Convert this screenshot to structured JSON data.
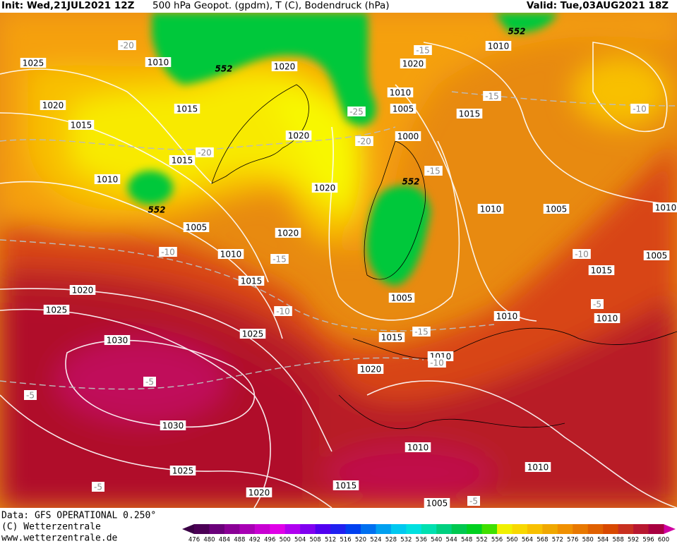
{
  "header": {
    "init": "Init: Wed,21JUL2021 12Z",
    "product": "500 hPa Geopot. (gpdm), T (C), Bodendruck (hPa)",
    "valid": "Valid: Tue,03AUG2021 18Z"
  },
  "footer": {
    "source": "Data: GFS OPERATIONAL 0.250°",
    "copyright": "(C) Wetterzentrale",
    "url": "www.wetterzentrale.de"
  },
  "pressure_labels": [
    "1025",
    "1010",
    "1020",
    "1015",
    "1015",
    "1015",
    "1010",
    "1020",
    "1020",
    "1010",
    "1010",
    "1005",
    "1015",
    "1000",
    "1020",
    "1020",
    "1005",
    "1020",
    "1010",
    "1010",
    "1005",
    "1010",
    "1005",
    "1015",
    "1015",
    "1020",
    "1025",
    "1005",
    "1010",
    "1010",
    "1025",
    "1015",
    "1010",
    "1030",
    "1020",
    "1030",
    "1010",
    "1010",
    "1025",
    "1015",
    "1020",
    "1005"
  ],
  "temperature_labels": [
    "-20",
    "-15",
    "-15",
    "-10",
    "-25",
    "-20",
    "-20",
    "-15",
    "-10",
    "-15",
    "-10",
    "-10",
    "-5",
    "-15",
    "-10",
    "-5",
    "-5",
    "-5",
    "-5"
  ],
  "geopotential_labels": [
    "552",
    "552",
    "552",
    "552"
  ],
  "colorbar": {
    "levels": [
      476,
      480,
      484,
      488,
      492,
      496,
      500,
      504,
      508,
      512,
      516,
      520,
      524,
      528,
      532,
      536,
      540,
      544,
      548,
      552,
      556,
      560,
      564,
      568,
      572,
      576,
      580,
      584,
      588,
      592,
      596,
      600
    ],
    "colors": [
      "#4b0055",
      "#6a007a",
      "#8a0096",
      "#a800b4",
      "#c800d2",
      "#e000e8",
      "#b000f0",
      "#8000f0",
      "#5000f0",
      "#2020f0",
      "#0040f0",
      "#0070f0",
      "#00a0f0",
      "#00c8f0",
      "#00e0e0",
      "#00e0b0",
      "#00d080",
      "#00c850",
      "#00d020",
      "#40e000",
      "#f0f000",
      "#f8d800",
      "#f8c000",
      "#f0a800",
      "#f09000",
      "#e87800",
      "#e06000",
      "#d84800",
      "#c83020",
      "#b81830",
      "#a80040"
    ]
  }
}
